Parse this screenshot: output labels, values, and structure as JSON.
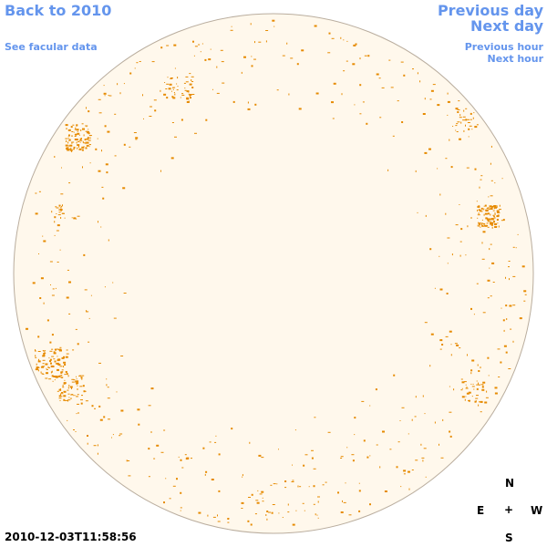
{
  "navigation": {
    "back_label": "Back to 2010",
    "facular_label": "See facular data",
    "previous_day_label": "Previous day",
    "next_day_label": "Next day",
    "previous_hour_label": "Previous hour",
    "next_hour_label": "Next hour"
  },
  "observation": {
    "timestamp": "2010-12-03T11:58:56"
  },
  "compass": {
    "north": "N",
    "south": "S",
    "east": "E",
    "west": "W",
    "center": "+"
  },
  "colors": {
    "link": "#6495ed",
    "disk_fill": "#fff8ec",
    "disk_stroke": "#b9ad9e",
    "facula": "#e68a00"
  },
  "icons": {
    "solar_disk": "solar-disk-icon",
    "facula_mark": "facula-mark"
  }
}
